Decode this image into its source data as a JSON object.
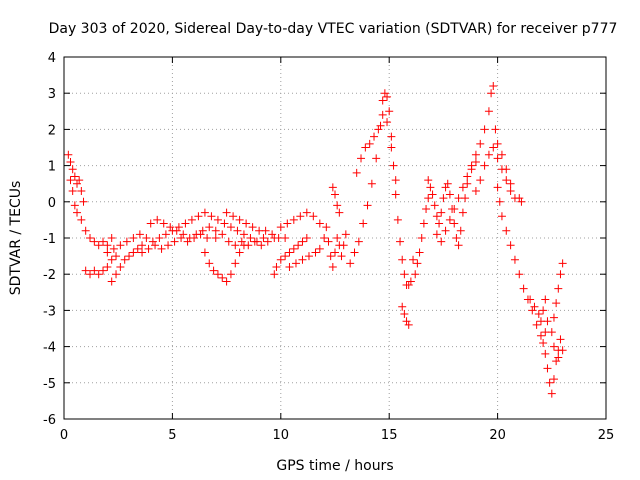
{
  "chart_data": {
    "type": "scatter",
    "title": "Day 303 of 2020, Sidereal Day-to-day VTEC variation (SDTVAR) for receiver p777",
    "xlabel": "GPS time / hours",
    "ylabel": "SDTVAR / TECUs",
    "xlim": [
      0,
      25
    ],
    "ylim": [
      -6,
      4
    ],
    "xticks": [
      0,
      5,
      10,
      15,
      20,
      25
    ],
    "yticks": [
      -6,
      -5,
      -4,
      -3,
      -2,
      -1,
      0,
      1,
      2,
      3,
      4
    ],
    "grid": true,
    "marker": "+",
    "color": "#ff0000",
    "series": [
      {
        "name": "p777",
        "points": [
          [
            0.2,
            1.3
          ],
          [
            0.3,
            1.1
          ],
          [
            0.4,
            0.9
          ],
          [
            0.5,
            0.7
          ],
          [
            0.6,
            0.5
          ],
          [
            0.7,
            0.6
          ],
          [
            0.8,
            0.3
          ],
          [
            0.9,
            0.0
          ],
          [
            0.3,
            0.6
          ],
          [
            0.4,
            0.3
          ],
          [
            0.5,
            -0.1
          ],
          [
            0.6,
            -0.3
          ],
          [
            0.8,
            -0.5
          ],
          [
            1.0,
            -0.8
          ],
          [
            1.2,
            -1.0
          ],
          [
            1.4,
            -1.1
          ],
          [
            1.6,
            -1.2
          ],
          [
            1.8,
            -1.1
          ],
          [
            2.0,
            -1.2
          ],
          [
            2.2,
            -1.0
          ],
          [
            1.0,
            -1.9
          ],
          [
            1.2,
            -2.0
          ],
          [
            1.4,
            -1.9
          ],
          [
            1.6,
            -2.0
          ],
          [
            1.8,
            -1.9
          ],
          [
            2.0,
            -1.8
          ],
          [
            2.2,
            -1.6
          ],
          [
            2.4,
            -1.5
          ],
          [
            2.2,
            -2.2
          ],
          [
            2.4,
            -2.0
          ],
          [
            2.6,
            -1.8
          ],
          [
            2.8,
            -1.6
          ],
          [
            3.0,
            -1.5
          ],
          [
            3.2,
            -1.4
          ],
          [
            3.4,
            -1.3
          ],
          [
            3.6,
            -1.2
          ],
          [
            2.0,
            -1.4
          ],
          [
            2.3,
            -1.3
          ],
          [
            2.6,
            -1.2
          ],
          [
            2.9,
            -1.1
          ],
          [
            3.2,
            -1.0
          ],
          [
            3.5,
            -0.9
          ],
          [
            3.8,
            -1.0
          ],
          [
            4.1,
            -1.1
          ],
          [
            4.4,
            -1.0
          ],
          [
            4.7,
            -0.9
          ],
          [
            5.0,
            -0.8
          ],
          [
            5.3,
            -0.7
          ],
          [
            5.6,
            -0.6
          ],
          [
            5.9,
            -0.5
          ],
          [
            6.2,
            -0.4
          ],
          [
            3.6,
            -1.4
          ],
          [
            3.9,
            -1.3
          ],
          [
            4.2,
            -1.2
          ],
          [
            4.5,
            -1.3
          ],
          [
            4.8,
            -1.2
          ],
          [
            5.1,
            -1.1
          ],
          [
            5.4,
            -1.0
          ],
          [
            5.7,
            -1.1
          ],
          [
            6.0,
            -1.0
          ],
          [
            6.3,
            -0.9
          ],
          [
            6.6,
            -1.0
          ],
          [
            4.0,
            -0.6
          ],
          [
            4.3,
            -0.5
          ],
          [
            4.6,
            -0.6
          ],
          [
            4.9,
            -0.7
          ],
          [
            5.2,
            -0.8
          ],
          [
            5.5,
            -0.9
          ],
          [
            5.8,
            -1.0
          ],
          [
            6.1,
            -0.9
          ],
          [
            6.4,
            -0.8
          ],
          [
            6.7,
            -0.7
          ],
          [
            7.0,
            -0.8
          ],
          [
            6.5,
            -0.3
          ],
          [
            6.8,
            -0.4
          ],
          [
            7.1,
            -0.5
          ],
          [
            7.4,
            -0.6
          ],
          [
            7.7,
            -0.7
          ],
          [
            8.0,
            -0.8
          ],
          [
            8.3,
            -0.9
          ],
          [
            8.6,
            -1.0
          ],
          [
            8.9,
            -1.1
          ],
          [
            9.2,
            -1.0
          ],
          [
            6.5,
            -1.4
          ],
          [
            6.7,
            -1.7
          ],
          [
            6.9,
            -1.9
          ],
          [
            7.1,
            -2.0
          ],
          [
            7.3,
            -2.1
          ],
          [
            7.5,
            -2.2
          ],
          [
            7.7,
            -2.0
          ],
          [
            7.9,
            -1.7
          ],
          [
            8.1,
            -1.4
          ],
          [
            8.3,
            -1.2
          ],
          [
            7.0,
            -1.0
          ],
          [
            7.3,
            -0.9
          ],
          [
            7.6,
            -1.1
          ],
          [
            7.9,
            -1.2
          ],
          [
            8.2,
            -1.1
          ],
          [
            8.5,
            -1.2
          ],
          [
            8.8,
            -1.1
          ],
          [
            9.1,
            -1.2
          ],
          [
            9.4,
            -1.1
          ],
          [
            9.7,
            -1.0
          ],
          [
            7.5,
            -0.3
          ],
          [
            7.8,
            -0.4
          ],
          [
            8.1,
            -0.5
          ],
          [
            8.4,
            -0.6
          ],
          [
            8.7,
            -0.7
          ],
          [
            9.0,
            -0.8
          ],
          [
            9.3,
            -0.8
          ],
          [
            9.6,
            -0.9
          ],
          [
            9.9,
            -1.0
          ],
          [
            10.2,
            -1.0
          ],
          [
            9.7,
            -2.0
          ],
          [
            9.8,
            -1.8
          ],
          [
            10.0,
            -1.6
          ],
          [
            10.2,
            -1.5
          ],
          [
            10.4,
            -1.4
          ],
          [
            10.6,
            -1.3
          ],
          [
            10.8,
            -1.2
          ],
          [
            11.0,
            -1.1
          ],
          [
            11.2,
            -1.0
          ],
          [
            10.0,
            -0.7
          ],
          [
            10.3,
            -0.6
          ],
          [
            10.6,
            -0.5
          ],
          [
            10.9,
            -0.4
          ],
          [
            11.2,
            -0.3
          ],
          [
            11.5,
            -0.4
          ],
          [
            11.8,
            -0.6
          ],
          [
            10.4,
            -1.8
          ],
          [
            10.7,
            -1.7
          ],
          [
            11.0,
            -1.6
          ],
          [
            11.3,
            -1.5
          ],
          [
            11.6,
            -1.4
          ],
          [
            11.8,
            -1.3
          ],
          [
            12.0,
            -1.0
          ],
          [
            12.1,
            -0.7
          ],
          [
            12.2,
            -1.1
          ],
          [
            12.3,
            -1.5
          ],
          [
            12.4,
            -1.8
          ],
          [
            12.5,
            -1.4
          ],
          [
            12.6,
            -1.0
          ],
          [
            12.7,
            -1.2
          ],
          [
            12.8,
            -1.5
          ],
          [
            12.9,
            -1.2
          ],
          [
            13.0,
            -0.9
          ],
          [
            12.4,
            0.4
          ],
          [
            12.5,
            0.2
          ],
          [
            12.6,
            -0.1
          ],
          [
            12.7,
            -0.3
          ],
          [
            13.2,
            -1.7
          ],
          [
            13.4,
            -1.4
          ],
          [
            13.6,
            -1.1
          ],
          [
            13.8,
            -0.6
          ],
          [
            14.0,
            -0.1
          ],
          [
            14.2,
            0.5
          ],
          [
            14.4,
            1.2
          ],
          [
            14.6,
            2.1
          ],
          [
            14.7,
            2.8
          ],
          [
            14.8,
            3.0
          ],
          [
            14.9,
            2.9
          ],
          [
            15.0,
            2.5
          ],
          [
            15.1,
            1.8
          ],
          [
            15.2,
            1.0
          ],
          [
            15.3,
            0.2
          ],
          [
            15.4,
            -0.5
          ],
          [
            15.5,
            -1.1
          ],
          [
            15.6,
            -1.6
          ],
          [
            15.7,
            -2.0
          ],
          [
            15.8,
            -2.3
          ],
          [
            15.9,
            -2.3
          ],
          [
            16.0,
            -2.2
          ],
          [
            13.5,
            0.8
          ],
          [
            13.7,
            1.2
          ],
          [
            13.9,
            1.5
          ],
          [
            14.1,
            1.6
          ],
          [
            14.3,
            1.8
          ],
          [
            14.5,
            2.0
          ],
          [
            14.7,
            2.4
          ],
          [
            14.9,
            2.2
          ],
          [
            15.1,
            1.5
          ],
          [
            15.3,
            0.6
          ],
          [
            15.6,
            -2.9
          ],
          [
            15.7,
            -3.1
          ],
          [
            15.8,
            -3.3
          ],
          [
            15.9,
            -3.4
          ],
          [
            16.1,
            -1.6
          ],
          [
            16.2,
            -2.0
          ],
          [
            16.3,
            -1.7
          ],
          [
            16.4,
            -1.4
          ],
          [
            16.5,
            -1.0
          ],
          [
            16.6,
            -0.6
          ],
          [
            16.7,
            -0.2
          ],
          [
            16.8,
            0.1
          ],
          [
            16.8,
            0.6
          ],
          [
            16.9,
            0.4
          ],
          [
            17.0,
            0.2
          ],
          [
            17.1,
            -0.1
          ],
          [
            17.2,
            -0.4
          ],
          [
            17.3,
            -0.6
          ],
          [
            17.4,
            -0.3
          ],
          [
            17.5,
            0.1
          ],
          [
            17.6,
            0.4
          ],
          [
            17.7,
            0.5
          ],
          [
            17.8,
            0.2
          ],
          [
            17.9,
            -0.2
          ],
          [
            18.0,
            -0.6
          ],
          [
            18.1,
            -1.0
          ],
          [
            18.2,
            -1.2
          ],
          [
            18.3,
            -0.8
          ],
          [
            18.4,
            -0.3
          ],
          [
            18.5,
            0.1
          ],
          [
            18.6,
            0.5
          ],
          [
            18.8,
            0.9
          ],
          [
            19.0,
            1.1
          ],
          [
            17.2,
            -0.9
          ],
          [
            17.4,
            -1.1
          ],
          [
            17.6,
            -0.8
          ],
          [
            17.8,
            -0.5
          ],
          [
            18.0,
            -0.2
          ],
          [
            18.2,
            0.1
          ],
          [
            18.4,
            0.4
          ],
          [
            18.6,
            0.7
          ],
          [
            18.8,
            1.0
          ],
          [
            19.0,
            1.3
          ],
          [
            19.2,
            1.6
          ],
          [
            19.4,
            2.0
          ],
          [
            19.6,
            2.5
          ],
          [
            19.7,
            3.0
          ],
          [
            19.8,
            3.2
          ],
          [
            19.9,
            2.0
          ],
          [
            20.0,
            1.6
          ],
          [
            20.2,
            1.3
          ],
          [
            20.4,
            0.9
          ],
          [
            20.6,
            0.5
          ],
          [
            19.0,
            0.3
          ],
          [
            19.2,
            0.6
          ],
          [
            19.4,
            1.0
          ],
          [
            19.6,
            1.3
          ],
          [
            19.8,
            1.5
          ],
          [
            20.0,
            1.2
          ],
          [
            20.2,
            0.9
          ],
          [
            20.4,
            0.6
          ],
          [
            20.6,
            0.3
          ],
          [
            20.8,
            0.1
          ],
          [
            21.0,
            0.1
          ],
          [
            21.1,
            0.0
          ],
          [
            20.0,
            0.4
          ],
          [
            20.1,
            0.0
          ],
          [
            20.2,
            -0.4
          ],
          [
            20.4,
            -0.8
          ],
          [
            20.6,
            -1.2
          ],
          [
            20.8,
            -1.6
          ],
          [
            21.0,
            -2.0
          ],
          [
            21.2,
            -2.4
          ],
          [
            21.4,
            -2.7
          ],
          [
            21.6,
            -3.0
          ],
          [
            21.8,
            -3.4
          ],
          [
            22.0,
            -3.7
          ],
          [
            22.1,
            -3.9
          ],
          [
            22.2,
            -3.6
          ],
          [
            22.3,
            -3.3
          ],
          [
            21.5,
            -2.7
          ],
          [
            21.7,
            -2.9
          ],
          [
            21.9,
            -3.1
          ],
          [
            22.0,
            -3.3
          ],
          [
            22.1,
            -3.0
          ],
          [
            22.2,
            -2.7
          ],
          [
            22.2,
            -4.2
          ],
          [
            22.3,
            -4.6
          ],
          [
            22.4,
            -5.0
          ],
          [
            22.5,
            -5.3
          ],
          [
            22.6,
            -4.9
          ],
          [
            22.7,
            -4.4
          ],
          [
            22.8,
            -4.1
          ],
          [
            22.9,
            -3.8
          ],
          [
            22.5,
            -3.6
          ],
          [
            22.6,
            -3.2
          ],
          [
            22.7,
            -2.8
          ],
          [
            22.8,
            -2.4
          ],
          [
            22.9,
            -2.0
          ],
          [
            23.0,
            -1.7
          ],
          [
            22.6,
            -4.0
          ],
          [
            22.8,
            -4.3
          ],
          [
            23.0,
            -4.1
          ]
        ]
      }
    ]
  }
}
